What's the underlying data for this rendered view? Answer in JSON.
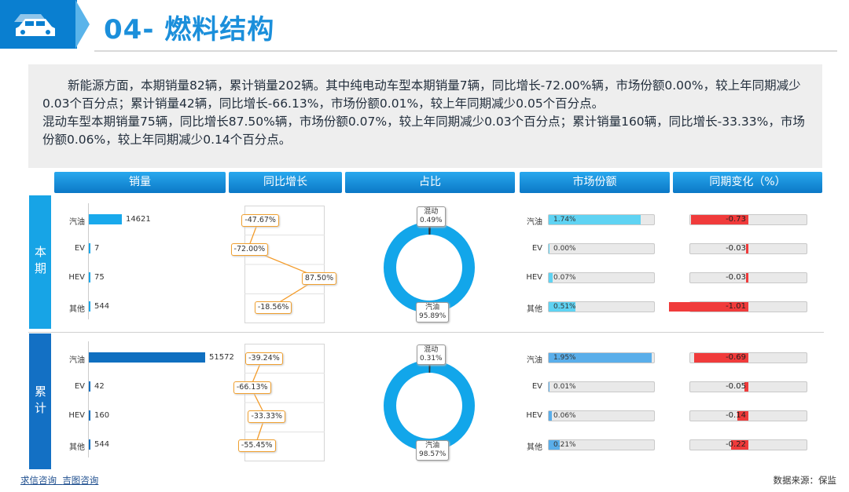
{
  "header": {
    "title": "04- 燃料结构",
    "icon": "car-icon"
  },
  "summary": {
    "para1": "新能源方面，本期销量82辆，累计销量202辆。其中纯电动车型本期销量7辆，同比增长-72.00%辆，市场份额0.00%，较上年同期减少0.03个百分点；累计销量42辆，同比增长-66.13%，市场份额0.01%，较上年同期减少0.05个百分点。",
    "para2": "混动车型本期销量75辆，同比增长87.50%辆，市场份额0.07%，较上年同期减少0.03个百分点；累计销量160辆，同比增长-33.33%，市场份额0.06%，较上年同期减少0.14个百分点。"
  },
  "columns": [
    "销量",
    "同比增长",
    "占比",
    "市场份额",
    "同期变化（%）"
  ],
  "periods": [
    {
      "label": "本期",
      "categories": [
        "汽油",
        "EV",
        "HEV",
        "其他"
      ],
      "sales": [
        14621,
        7,
        75,
        544
      ],
      "sales_labels": [
        "14621",
        "7",
        "75",
        "544"
      ],
      "yoy": [
        -47.67,
        -72.0,
        87.5,
        -18.56
      ],
      "yoy_labels": [
        "-47.67%",
        "-72.00%",
        "87.50%",
        "-18.56%"
      ],
      "pie": [
        {
          "name": "混动",
          "pct": "0.49%",
          "value": 0.49
        },
        {
          "name": "汽油",
          "pct": "95.89%",
          "value": 95.89
        }
      ],
      "market_share": [
        1.74,
        0.0,
        0.07,
        0.51
      ],
      "market_share_labels": [
        "1.74%",
        "0.00%",
        "0.07%",
        "0.51%"
      ],
      "change": [
        -0.73,
        -0.03,
        -0.03,
        -1.01
      ],
      "change_labels": [
        "-0.73",
        "-0.03",
        "-0.03",
        "-1.01"
      ]
    },
    {
      "label": "累计",
      "categories": [
        "汽油",
        "EV",
        "HEV",
        "其他"
      ],
      "sales": [
        51572,
        42,
        160,
        544
      ],
      "sales_labels": [
        "51572",
        "42",
        "160",
        "544"
      ],
      "yoy": [
        -39.24,
        -66.13,
        -33.33,
        -55.45
      ],
      "yoy_labels": [
        "-39.24%",
        "-66.13%",
        "-33.33%",
        "-55.45%"
      ],
      "pie": [
        {
          "name": "混动",
          "pct": "0.31%",
          "value": 0.31
        },
        {
          "name": "汽油",
          "pct": "98.57%",
          "value": 98.57
        }
      ],
      "market_share": [
        1.95,
        0.01,
        0.06,
        0.21
      ],
      "market_share_labels": [
        "1.95%",
        "0.01%",
        "0.06%",
        "0.21%"
      ],
      "change": [
        -0.69,
        -0.05,
        -0.14,
        -0.22
      ],
      "change_labels": [
        "-0.69",
        "-0.05",
        "-0.14",
        "-0.22"
      ]
    }
  ],
  "colors": {
    "current_sales": "#19a9ec",
    "cumulative_sales": "#0f6fc0",
    "pie": "#12a6ea",
    "ms_current": "#5fd3f3",
    "ms_cumulative": "#5aaeea",
    "change": "#f03b3b",
    "yoy_line": "#f39c2b"
  },
  "footer": {
    "left1": "求信咨询",
    "left2": "吉图咨询",
    "right": "数据来源：保监"
  },
  "chart_data": [
    {
      "type": "bar",
      "title": "销量",
      "series": [
        {
          "name": "本期",
          "values": [
            14621,
            7,
            75,
            544
          ]
        },
        {
          "name": "累计",
          "values": [
            51572,
            42,
            160,
            544
          ]
        }
      ],
      "categories": [
        "汽油",
        "EV",
        "HEV",
        "其他"
      ]
    },
    {
      "type": "line",
      "title": "同比增长",
      "series": [
        {
          "name": "本期",
          "values": [
            -47.67,
            -72.0,
            87.5,
            -18.56
          ]
        },
        {
          "name": "累计",
          "values": [
            -39.24,
            -66.13,
            -33.33,
            -55.45
          ]
        }
      ],
      "categories": [
        "汽油",
        "EV",
        "HEV",
        "其他"
      ]
    },
    {
      "type": "pie",
      "title": "占比",
      "series": [
        {
          "name": "本期",
          "values": [
            0.49,
            95.89
          ]
        },
        {
          "name": "累计",
          "values": [
            0.31,
            98.57
          ]
        }
      ],
      "categories": [
        "混动",
        "汽油"
      ]
    },
    {
      "type": "bar",
      "title": "市场份额",
      "series": [
        {
          "name": "本期",
          "values": [
            1.74,
            0.0,
            0.07,
            0.51
          ]
        },
        {
          "name": "累计",
          "values": [
            1.95,
            0.01,
            0.06,
            0.21
          ]
        }
      ],
      "categories": [
        "汽油",
        "EV",
        "HEV",
        "其他"
      ]
    },
    {
      "type": "bar",
      "title": "同期变化（%）",
      "series": [
        {
          "name": "本期",
          "values": [
            -0.73,
            -0.03,
            -0.03,
            -1.01
          ]
        },
        {
          "name": "累计",
          "values": [
            -0.69,
            -0.05,
            -0.14,
            -0.22
          ]
        }
      ],
      "categories": [
        "汽油",
        "EV",
        "HEV",
        "其他"
      ]
    }
  ]
}
